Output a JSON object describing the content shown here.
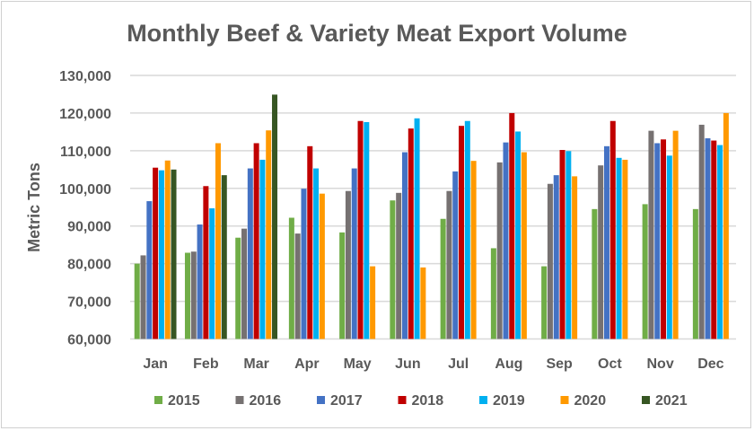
{
  "chart_data": {
    "type": "bar",
    "title": "Monthly Beef & Variety Meat Export Volume",
    "xlabel": "",
    "ylabel": "Metric Tons",
    "ylim": [
      60000,
      130000
    ],
    "yticks": [
      60000,
      70000,
      80000,
      90000,
      100000,
      110000,
      120000,
      130000
    ],
    "ytick_labels": [
      "60,000",
      "70,000",
      "80,000",
      "90,000",
      "100,000",
      "110,000",
      "120,000",
      "130,000"
    ],
    "grid": true,
    "legend_position": "bottom",
    "categories": [
      "Jan",
      "Feb",
      "Mar",
      "Apr",
      "May",
      "Jun",
      "Jul",
      "Aug",
      "Sep",
      "Oct",
      "Nov",
      "Dec"
    ],
    "series": [
      {
        "name": "2015",
        "color": "#70ad47",
        "values": [
          80000,
          82900,
          86900,
          92200,
          88300,
          96800,
          91900,
          84100,
          79300,
          94500,
          95800,
          94500
        ]
      },
      {
        "name": "2016",
        "color": "#767171",
        "values": [
          82200,
          83200,
          89300,
          88000,
          99300,
          98800,
          99300,
          106900,
          101200,
          106100,
          115300,
          116900
        ]
      },
      {
        "name": "2017",
        "color": "#4472c4",
        "values": [
          96600,
          90400,
          105300,
          99900,
          105300,
          109600,
          104500,
          112200,
          103500,
          111200,
          112000,
          113300
        ]
      },
      {
        "name": "2018",
        "color": "#c00000",
        "values": [
          105500,
          100600,
          112000,
          111200,
          117900,
          115900,
          116600,
          120000,
          110200,
          117900,
          113000,
          112700
        ]
      },
      {
        "name": "2019",
        "color": "#00b0f0",
        "values": [
          104800,
          94700,
          107600,
          105300,
          117600,
          118600,
          117900,
          115100,
          109900,
          108100,
          108700,
          111500
        ]
      },
      {
        "name": "2020",
        "color": "#ff9900",
        "values": [
          107400,
          112000,
          115400,
          98600,
          79300,
          79000,
          107300,
          109600,
          103200,
          107600,
          115300,
          120000
        ]
      },
      {
        "name": "2021",
        "color": "#375623",
        "values": [
          105000,
          103500,
          124900,
          null,
          null,
          null,
          null,
          null,
          null,
          null,
          null,
          null
        ]
      }
    ]
  }
}
